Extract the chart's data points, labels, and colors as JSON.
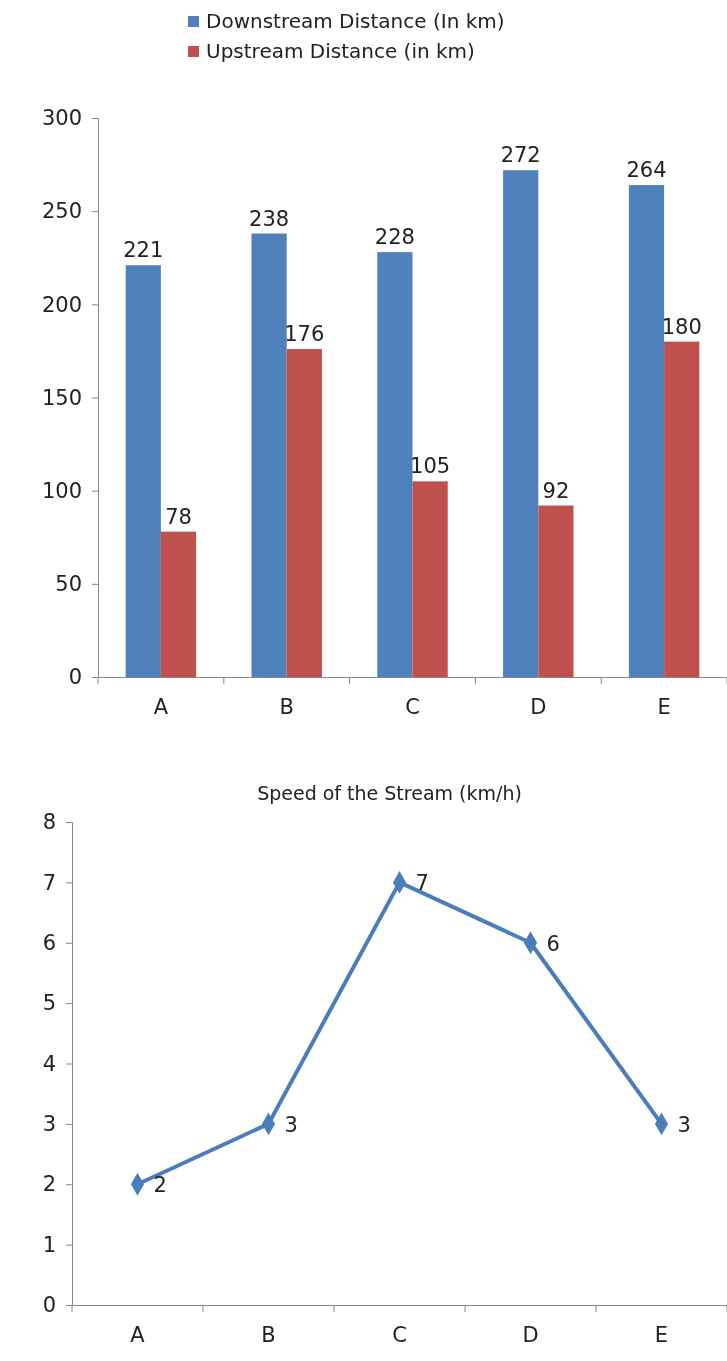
{
  "chart_data": [
    {
      "type": "bar",
      "categories": [
        "A",
        "B",
        "C",
        "D",
        "E"
      ],
      "series": [
        {
          "name": "Downstream Distance (In km)",
          "color": "#4f81bd",
          "values": [
            221,
            238,
            228,
            272,
            264
          ]
        },
        {
          "name": "Upstream Distance (in km)",
          "color": "#c0504d",
          "values": [
            78,
            176,
            105,
            92,
            180
          ]
        }
      ],
      "ylim": [
        0,
        300
      ],
      "yticks": [
        0,
        50,
        100,
        150,
        200,
        250,
        300
      ],
      "data_labels": true,
      "legend": "top",
      "grid": false
    },
    {
      "type": "line",
      "title": "Speed of the Stream (km/h)",
      "categories": [
        "A",
        "B",
        "C",
        "D",
        "E"
      ],
      "series": [
        {
          "color": "#4a7ebb",
          "values": [
            2,
            3,
            7,
            6,
            3
          ]
        }
      ],
      "ylim": [
        0,
        8
      ],
      "yticks": [
        0,
        1,
        2,
        3,
        4,
        5,
        6,
        7,
        8
      ],
      "data_labels": true,
      "marker": "diamond",
      "line_style": "solid",
      "grid": false
    }
  ]
}
